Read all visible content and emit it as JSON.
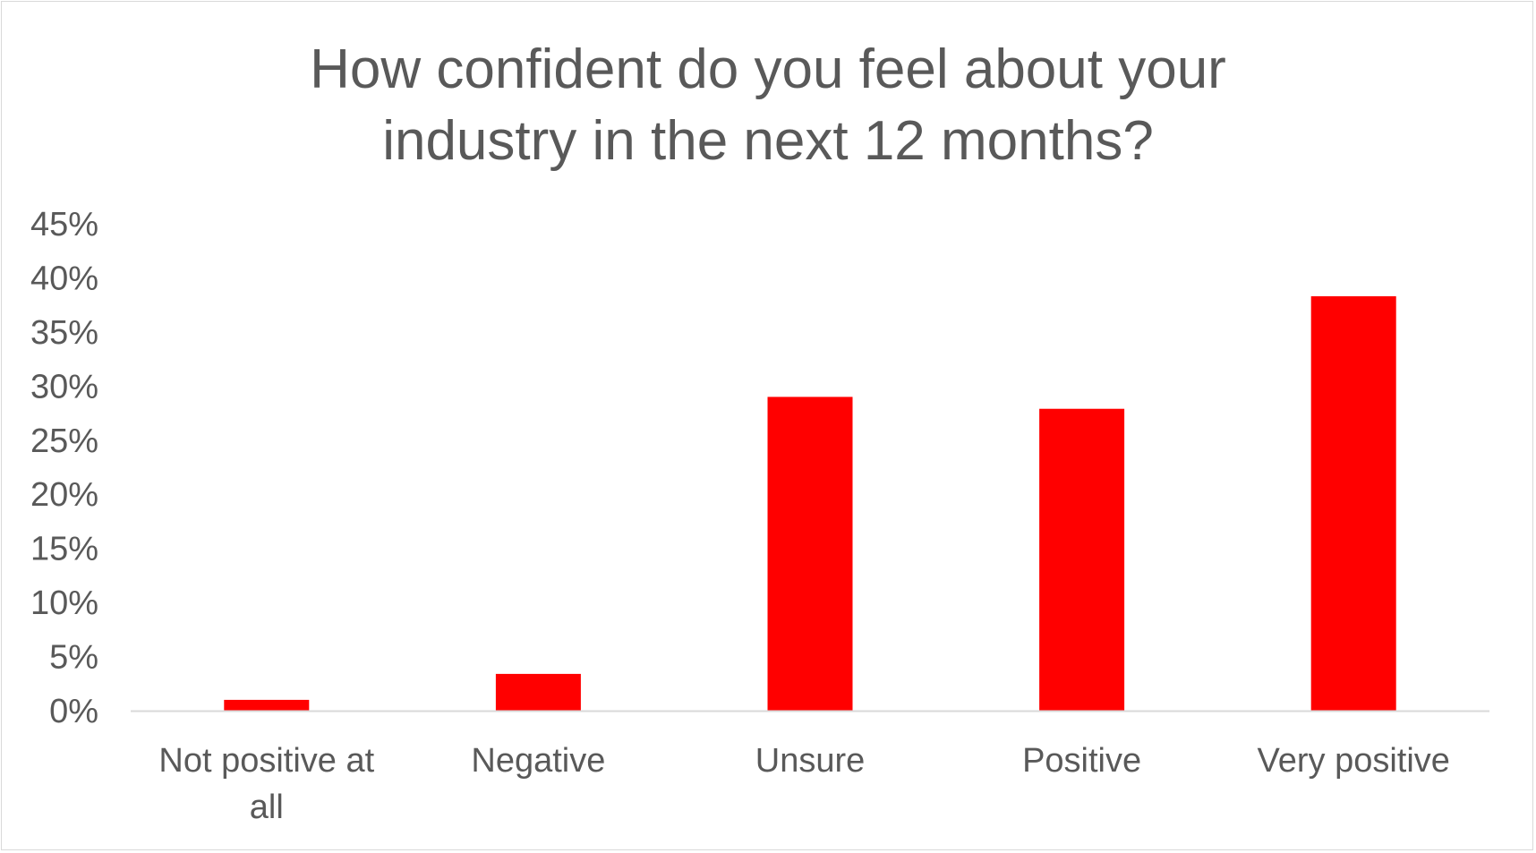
{
  "chart_data": {
    "type": "bar",
    "title_lines": [
      "How confident do you feel about your",
      "industry in the next 12 months?"
    ],
    "categories": [
      "Not positive at all",
      "Negative",
      "Unsure",
      "Positive",
      "Very positive"
    ],
    "category_label_lines": [
      [
        "Not positive at",
        "all"
      ],
      [
        "Negative"
      ],
      [
        "Unsure"
      ],
      [
        "Positive"
      ],
      [
        "Very positive"
      ]
    ],
    "values": [
      1,
      3.4,
      29,
      27.9,
      38.3
    ],
    "ylim": [
      0,
      45
    ],
    "y_ticks": [
      0,
      5,
      10,
      15,
      20,
      25,
      30,
      35,
      40,
      45
    ],
    "y_tick_labels": [
      "0%",
      "5%",
      "10%",
      "15%",
      "20%",
      "25%",
      "30%",
      "35%",
      "40%",
      "45%"
    ],
    "xlabel": "",
    "ylabel": "",
    "grid": false,
    "legend": "none",
    "bar_color": "#ff0000",
    "axis_color": "#d9d9d9",
    "text_color": "#595959"
  }
}
